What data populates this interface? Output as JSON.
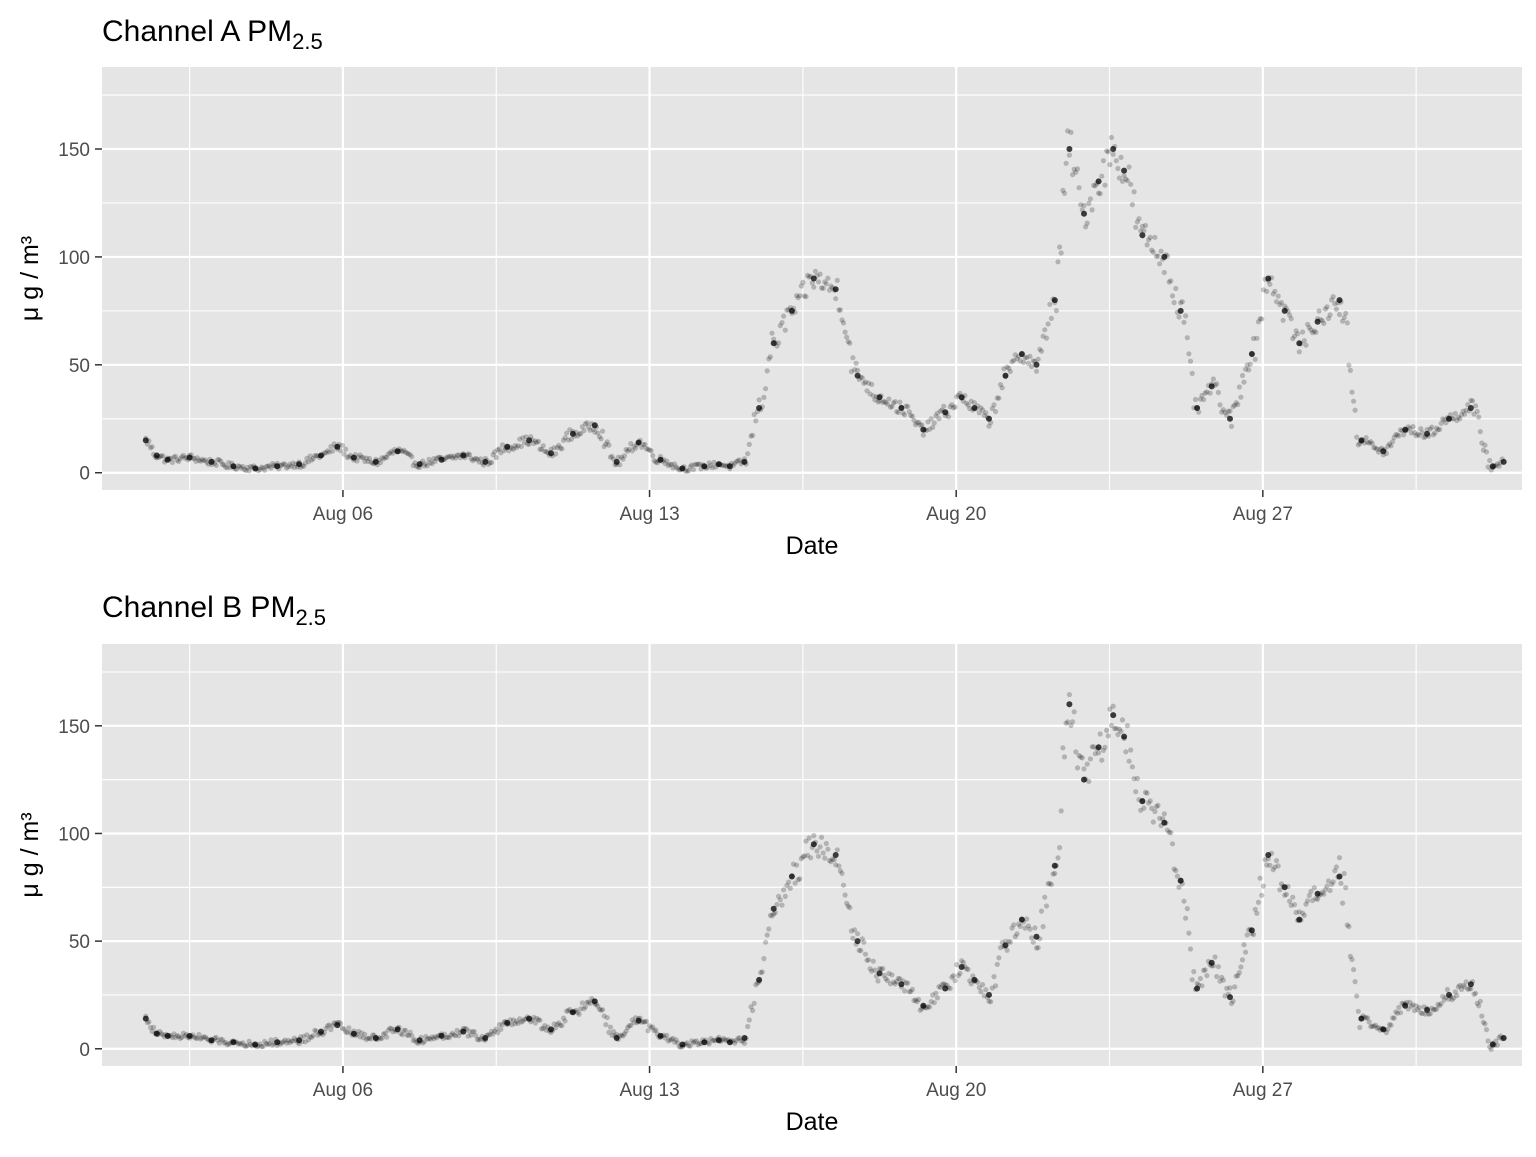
{
  "chart_data": [
    {
      "type": "scatter",
      "title": "Channel A PM",
      "title_subscript": "2.5",
      "xlabel": "Date",
      "ylabel": "μ g / m³",
      "x_ticks": [
        "Aug 06",
        "Aug 13",
        "Aug 20",
        "Aug 27"
      ],
      "y_ticks": [
        "0",
        "50",
        "100",
        "150"
      ],
      "xlim": [
        "2018-07-31T12:00",
        "2018-09-01T22:00"
      ],
      "ylim": [
        -8,
        188
      ],
      "grid": true,
      "background": "#e5e5e5",
      "point_color": "#000000",
      "series": [
        {
          "x": [
            "2018-08-01T12:00",
            "2018-08-01T18:00",
            "2018-08-02T00:00",
            "2018-08-02T12:00",
            "2018-08-03T00:00",
            "2018-08-03T12:00",
            "2018-08-04T00:00",
            "2018-08-04T12:00",
            "2018-08-05T00:00",
            "2018-08-05T12:00",
            "2018-08-05T21:00",
            "2018-08-06T06:00",
            "2018-08-06T18:00",
            "2018-08-07T06:00",
            "2018-08-07T18:00",
            "2018-08-08T06:00",
            "2018-08-08T18:00",
            "2018-08-09T06:00",
            "2018-08-09T18:00",
            "2018-08-10T06:00",
            "2018-08-10T18:00",
            "2018-08-11T06:00",
            "2018-08-11T18:00",
            "2018-08-12T06:00",
            "2018-08-12T18:00",
            "2018-08-13T06:00",
            "2018-08-13T18:00",
            "2018-08-14T06:00",
            "2018-08-14T14:00",
            "2018-08-14T20:00",
            "2018-08-15T04:00",
            "2018-08-15T12:00",
            "2018-08-15T20:00",
            "2018-08-16T06:00",
            "2018-08-16T18:00",
            "2018-08-17T06:00",
            "2018-08-17T18:00",
            "2018-08-18T06:00",
            "2018-08-18T18:00",
            "2018-08-19T06:00",
            "2018-08-19T18:00",
            "2018-08-20T03:00",
            "2018-08-20T10:00",
            "2018-08-20T18:00",
            "2018-08-21T03:00",
            "2018-08-21T12:00",
            "2018-08-21T20:00",
            "2018-08-22T06:00",
            "2018-08-22T14:00",
            "2018-08-22T22:00",
            "2018-08-23T06:00",
            "2018-08-23T14:00",
            "2018-08-23T20:00",
            "2018-08-24T06:00",
            "2018-08-24T18:00",
            "2018-08-25T03:00",
            "2018-08-25T12:00",
            "2018-08-25T20:00",
            "2018-08-26T06:00",
            "2018-08-26T18:00",
            "2018-08-27T03:00",
            "2018-08-27T12:00",
            "2018-08-27T20:00",
            "2018-08-28T06:00",
            "2018-08-28T18:00",
            "2018-08-29T06:00",
            "2018-08-29T18:00",
            "2018-08-30T06:00",
            "2018-08-30T18:00",
            "2018-08-31T06:00",
            "2018-08-31T18:00",
            "2018-09-01T06:00",
            "2018-09-01T12:00"
          ],
          "values": [
            15,
            8,
            6,
            7,
            5,
            3,
            2,
            3,
            4,
            8,
            12,
            7,
            5,
            10,
            4,
            6,
            8,
            5,
            12,
            15,
            9,
            18,
            22,
            5,
            14,
            6,
            2,
            3,
            4,
            3,
            5,
            30,
            60,
            75,
            90,
            85,
            45,
            35,
            30,
            20,
            28,
            35,
            30,
            25,
            45,
            55,
            50,
            80,
            150,
            120,
            135,
            150,
            140,
            110,
            100,
            75,
            30,
            40,
            25,
            55,
            90,
            75,
            60,
            70,
            80,
            15,
            10,
            20,
            18,
            25,
            30,
            3,
            5
          ]
        }
      ]
    },
    {
      "type": "scatter",
      "title": "Channel B PM",
      "title_subscript": "2.5",
      "xlabel": "Date",
      "ylabel": "μ g / m³",
      "x_ticks": [
        "Aug 06",
        "Aug 13",
        "Aug 20",
        "Aug 27"
      ],
      "y_ticks": [
        "0",
        "50",
        "100",
        "150"
      ],
      "xlim": [
        "2018-07-31T12:00",
        "2018-09-01T22:00"
      ],
      "ylim": [
        -8,
        188
      ],
      "grid": true,
      "background": "#e5e5e5",
      "point_color": "#000000",
      "series": [
        {
          "x": [
            "2018-08-01T12:00",
            "2018-08-01T18:00",
            "2018-08-02T00:00",
            "2018-08-02T12:00",
            "2018-08-03T00:00",
            "2018-08-03T12:00",
            "2018-08-04T00:00",
            "2018-08-04T12:00",
            "2018-08-05T00:00",
            "2018-08-05T12:00",
            "2018-08-05T21:00",
            "2018-08-06T06:00",
            "2018-08-06T18:00",
            "2018-08-07T06:00",
            "2018-08-07T18:00",
            "2018-08-08T06:00",
            "2018-08-08T18:00",
            "2018-08-09T06:00",
            "2018-08-09T18:00",
            "2018-08-10T06:00",
            "2018-08-10T18:00",
            "2018-08-11T06:00",
            "2018-08-11T18:00",
            "2018-08-12T06:00",
            "2018-08-12T18:00",
            "2018-08-13T06:00",
            "2018-08-13T18:00",
            "2018-08-14T06:00",
            "2018-08-14T14:00",
            "2018-08-14T20:00",
            "2018-08-15T04:00",
            "2018-08-15T12:00",
            "2018-08-15T20:00",
            "2018-08-16T06:00",
            "2018-08-16T18:00",
            "2018-08-17T06:00",
            "2018-08-17T18:00",
            "2018-08-18T06:00",
            "2018-08-18T18:00",
            "2018-08-19T06:00",
            "2018-08-19T18:00",
            "2018-08-20T03:00",
            "2018-08-20T10:00",
            "2018-08-20T18:00",
            "2018-08-21T03:00",
            "2018-08-21T12:00",
            "2018-08-21T20:00",
            "2018-08-22T06:00",
            "2018-08-22T14:00",
            "2018-08-22T22:00",
            "2018-08-23T06:00",
            "2018-08-23T14:00",
            "2018-08-23T20:00",
            "2018-08-24T06:00",
            "2018-08-24T18:00",
            "2018-08-25T03:00",
            "2018-08-25T12:00",
            "2018-08-25T20:00",
            "2018-08-26T06:00",
            "2018-08-26T18:00",
            "2018-08-27T03:00",
            "2018-08-27T12:00",
            "2018-08-27T20:00",
            "2018-08-28T06:00",
            "2018-08-28T18:00",
            "2018-08-29T06:00",
            "2018-08-29T18:00",
            "2018-08-30T06:00",
            "2018-08-30T18:00",
            "2018-08-31T06:00",
            "2018-08-31T18:00",
            "2018-09-01T06:00",
            "2018-09-01T12:00"
          ],
          "values": [
            14,
            7,
            6,
            6,
            4,
            3,
            2,
            3,
            4,
            8,
            11,
            7,
            5,
            9,
            4,
            6,
            8,
            5,
            12,
            14,
            9,
            17,
            22,
            5,
            13,
            6,
            2,
            3,
            4,
            3,
            5,
            32,
            65,
            80,
            95,
            90,
            50,
            35,
            30,
            20,
            28,
            38,
            32,
            25,
            48,
            60,
            52,
            85,
            160,
            125,
            140,
            155,
            145,
            115,
            105,
            78,
            28,
            40,
            24,
            55,
            90,
            75,
            60,
            72,
            80,
            14,
            9,
            20,
            18,
            25,
            30,
            2,
            5
          ]
        }
      ]
    }
  ]
}
